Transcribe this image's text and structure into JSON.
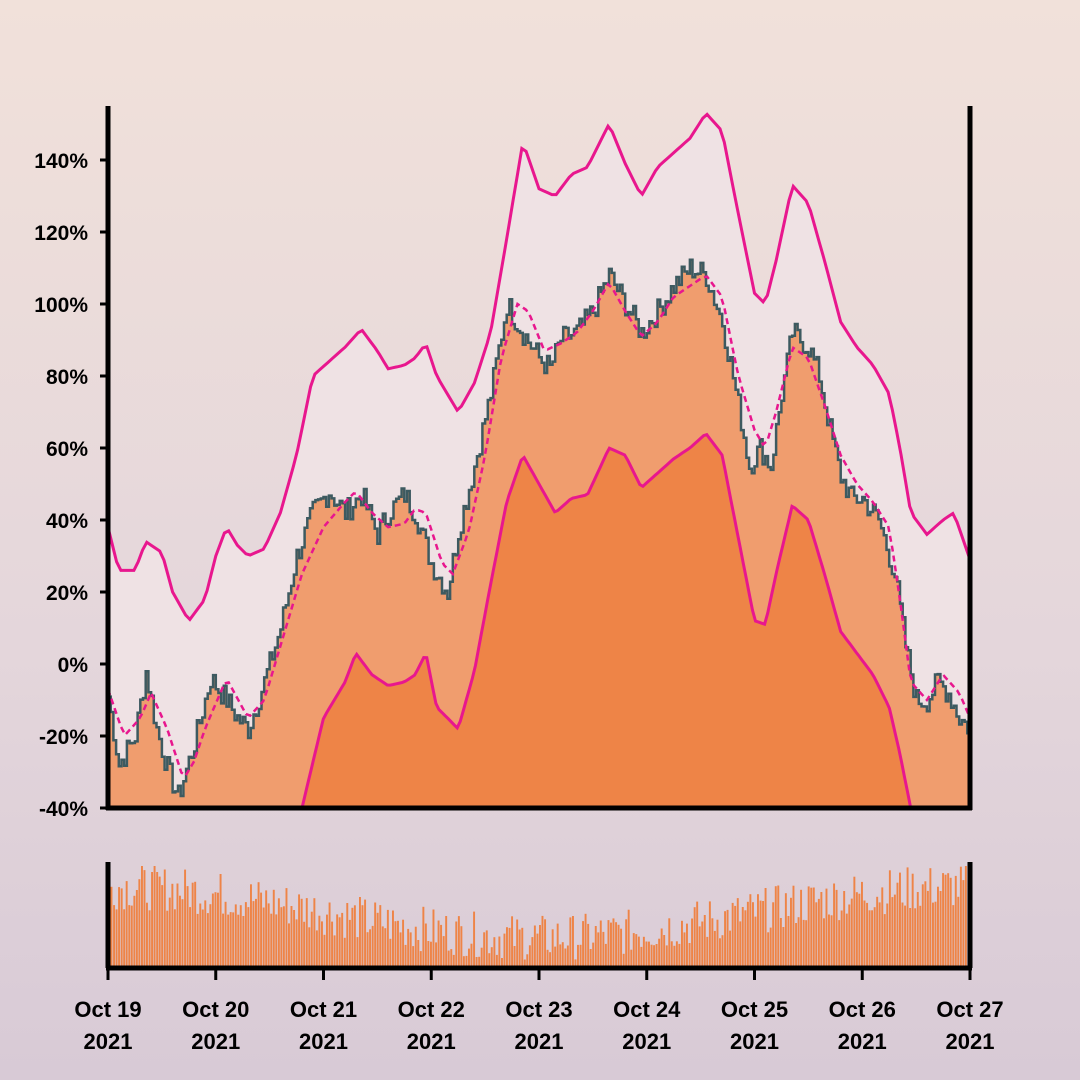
{
  "chart_data": {
    "type": "area",
    "description_visible": "Bollinger-style band chart with price area and volume bars",
    "y_axis": {
      "ylim": [
        -40,
        155
      ],
      "ticks": [
        -40,
        -20,
        0,
        20,
        40,
        60,
        80,
        100,
        120,
        140
      ],
      "tick_labels": [
        "-40%",
        "-20%",
        "0%",
        "20%",
        "40%",
        "60%",
        "80%",
        "100%",
        "120%",
        "140%"
      ]
    },
    "x_axis": {
      "range": [
        "2021-10-19",
        "2021-10-27"
      ],
      "ticks": [
        {
          "date": "2021-10-19",
          "line1": "Oct 19",
          "line2": "2021"
        },
        {
          "date": "2021-10-20",
          "line1": "Oct 20",
          "line2": "2021"
        },
        {
          "date": "2021-10-21",
          "line1": "Oct 21",
          "line2": "2021"
        },
        {
          "date": "2021-10-22",
          "line1": "Oct 22",
          "line2": "2021"
        },
        {
          "date": "2021-10-23",
          "line1": "Oct 23",
          "line2": "2021"
        },
        {
          "date": "2021-10-24",
          "line1": "Oct 24",
          "line2": "2021"
        },
        {
          "date": "2021-10-25",
          "line1": "Oct 25",
          "line2": "2021"
        },
        {
          "date": "2021-10-26",
          "line1": "Oct 26",
          "line2": "2021"
        },
        {
          "date": "2021-10-27",
          "line1": "Oct 27",
          "line2": "2021"
        }
      ]
    },
    "series": [
      {
        "role": "price",
        "points": [
          [
            0,
            -9
          ],
          [
            0.1,
            -28
          ],
          [
            0.25,
            -20
          ],
          [
            0.35,
            -2
          ],
          [
            0.45,
            -18
          ],
          [
            0.55,
            -29
          ],
          [
            0.65,
            -37
          ],
          [
            0.8,
            -22
          ],
          [
            0.95,
            -4
          ],
          [
            1.1,
            -10
          ],
          [
            1.2,
            -15
          ],
          [
            1.3,
            -18
          ],
          [
            1.45,
            -5
          ],
          [
            1.6,
            10
          ],
          [
            1.75,
            30
          ],
          [
            1.9,
            42
          ],
          [
            2.05,
            48
          ],
          [
            2.2,
            42
          ],
          [
            2.35,
            47
          ],
          [
            2.5,
            36
          ],
          [
            2.6,
            42
          ],
          [
            2.75,
            47
          ],
          [
            2.85,
            42
          ],
          [
            3.0,
            28
          ],
          [
            3.15,
            20
          ],
          [
            3.25,
            37
          ],
          [
            3.4,
            55
          ],
          [
            3.55,
            75
          ],
          [
            3.7,
            100
          ],
          [
            3.85,
            92
          ],
          [
            4.0,
            85
          ],
          [
            4.1,
            82
          ],
          [
            4.2,
            90
          ],
          [
            4.35,
            92
          ],
          [
            4.5,
            98
          ],
          [
            4.65,
            108
          ],
          [
            4.8,
            100
          ],
          [
            4.95,
            92
          ],
          [
            5.1,
            98
          ],
          [
            5.25,
            105
          ],
          [
            5.4,
            110
          ],
          [
            5.55,
            108
          ],
          [
            5.7,
            95
          ],
          [
            5.85,
            72
          ],
          [
            5.95,
            55
          ],
          [
            6.05,
            60
          ],
          [
            6.15,
            55
          ],
          [
            6.25,
            75
          ],
          [
            6.35,
            92
          ],
          [
            6.5,
            88
          ],
          [
            6.6,
            80
          ],
          [
            6.7,
            65
          ],
          [
            6.8,
            52
          ],
          [
            6.9,
            46
          ],
          [
            7.0,
            46
          ],
          [
            7.15,
            40
          ],
          [
            7.3,
            25
          ],
          [
            7.4,
            5
          ],
          [
            7.5,
            -10
          ],
          [
            7.6,
            -10
          ],
          [
            7.7,
            -5
          ],
          [
            7.8,
            -8
          ],
          [
            7.9,
            -15
          ],
          [
            8.0,
            -18
          ]
        ]
      },
      {
        "role": "moving_average",
        "points": [
          [
            0,
            -7
          ],
          [
            0.15,
            -20
          ],
          [
            0.3,
            -15
          ],
          [
            0.4,
            -8
          ],
          [
            0.55,
            -18
          ],
          [
            0.7,
            -32
          ],
          [
            0.8,
            -27
          ],
          [
            0.9,
            -18
          ],
          [
            1.1,
            -4
          ],
          [
            1.3,
            -15
          ],
          [
            1.45,
            -10
          ],
          [
            1.6,
            5
          ],
          [
            1.8,
            25
          ],
          [
            2.0,
            38
          ],
          [
            2.2,
            45
          ],
          [
            2.3,
            48
          ],
          [
            2.45,
            42
          ],
          [
            2.6,
            38
          ],
          [
            2.75,
            39
          ],
          [
            2.85,
            43
          ],
          [
            2.95,
            42
          ],
          [
            3.1,
            28
          ],
          [
            3.2,
            25
          ],
          [
            3.35,
            37
          ],
          [
            3.5,
            58
          ],
          [
            3.65,
            85
          ],
          [
            3.8,
            100
          ],
          [
            3.9,
            98
          ],
          [
            4.05,
            87
          ],
          [
            4.2,
            89
          ],
          [
            4.35,
            92
          ],
          [
            4.5,
            98
          ],
          [
            4.65,
            106
          ],
          [
            4.8,
            98
          ],
          [
            4.95,
            91
          ],
          [
            5.1,
            95
          ],
          [
            5.25,
            102
          ],
          [
            5.4,
            105
          ],
          [
            5.55,
            108
          ],
          [
            5.7,
            102
          ],
          [
            5.85,
            80
          ],
          [
            6.0,
            65
          ],
          [
            6.1,
            60
          ],
          [
            6.2,
            70
          ],
          [
            6.35,
            88
          ],
          [
            6.5,
            85
          ],
          [
            6.65,
            72
          ],
          [
            6.8,
            58
          ],
          [
            6.95,
            50
          ],
          [
            7.1,
            45
          ],
          [
            7.25,
            38
          ],
          [
            7.35,
            18
          ],
          [
            7.45,
            -5
          ],
          [
            7.6,
            -10
          ],
          [
            7.75,
            -3
          ],
          [
            7.9,
            -8
          ],
          [
            8.0,
            -15
          ]
        ]
      },
      {
        "role": "upper_band",
        "points": [
          [
            0,
            38
          ],
          [
            0.1,
            26
          ],
          [
            0.25,
            26
          ],
          [
            0.35,
            34
          ],
          [
            0.5,
            31
          ],
          [
            0.6,
            20
          ],
          [
            0.75,
            12
          ],
          [
            0.9,
            18
          ],
          [
            1.0,
            30
          ],
          [
            1.1,
            38
          ],
          [
            1.2,
            33
          ],
          [
            1.3,
            30
          ],
          [
            1.45,
            32
          ],
          [
            1.6,
            42
          ],
          [
            1.75,
            58
          ],
          [
            1.9,
            80
          ],
          [
            2.05,
            84
          ],
          [
            2.2,
            88
          ],
          [
            2.35,
            93
          ],
          [
            2.5,
            87
          ],
          [
            2.6,
            82
          ],
          [
            2.75,
            83
          ],
          [
            2.85,
            85
          ],
          [
            2.95,
            89
          ],
          [
            3.05,
            80
          ],
          [
            3.25,
            70
          ],
          [
            3.4,
            78
          ],
          [
            3.55,
            92
          ],
          [
            3.7,
            118
          ],
          [
            3.85,
            145
          ],
          [
            4.0,
            132
          ],
          [
            4.15,
            130
          ],
          [
            4.3,
            136
          ],
          [
            4.45,
            138
          ],
          [
            4.65,
            150
          ],
          [
            4.8,
            139
          ],
          [
            4.95,
            130
          ],
          [
            5.1,
            138
          ],
          [
            5.25,
            142
          ],
          [
            5.4,
            146
          ],
          [
            5.55,
            153
          ],
          [
            5.7,
            148
          ],
          [
            5.85,
            125
          ],
          [
            6.0,
            103
          ],
          [
            6.1,
            100
          ],
          [
            6.2,
            112
          ],
          [
            6.35,
            133
          ],
          [
            6.5,
            128
          ],
          [
            6.65,
            112
          ],
          [
            6.8,
            95
          ],
          [
            6.95,
            88
          ],
          [
            7.1,
            83
          ],
          [
            7.25,
            75
          ],
          [
            7.35,
            60
          ],
          [
            7.45,
            42
          ],
          [
            7.6,
            36
          ],
          [
            7.75,
            40
          ],
          [
            7.85,
            42
          ],
          [
            8.0,
            29
          ]
        ]
      },
      {
        "role": "lower_band",
        "points": [
          [
            1.8,
            -40
          ],
          [
            2.0,
            -15
          ],
          [
            2.2,
            -5
          ],
          [
            2.3,
            3
          ],
          [
            2.45,
            -3
          ],
          [
            2.6,
            -6
          ],
          [
            2.75,
            -5
          ],
          [
            2.85,
            -3
          ],
          [
            2.95,
            3
          ],
          [
            3.05,
            -12
          ],
          [
            3.25,
            -18
          ],
          [
            3.4,
            -2
          ],
          [
            3.55,
            22
          ],
          [
            3.7,
            45
          ],
          [
            3.85,
            58
          ],
          [
            4.0,
            50
          ],
          [
            4.15,
            42
          ],
          [
            4.3,
            46
          ],
          [
            4.45,
            47
          ],
          [
            4.65,
            60
          ],
          [
            4.8,
            58
          ],
          [
            4.95,
            49
          ],
          [
            5.1,
            53
          ],
          [
            5.25,
            57
          ],
          [
            5.4,
            60
          ],
          [
            5.55,
            64
          ],
          [
            5.7,
            58
          ],
          [
            5.85,
            35
          ],
          [
            6.0,
            12
          ],
          [
            6.1,
            11
          ],
          [
            6.2,
            25
          ],
          [
            6.35,
            44
          ],
          [
            6.5,
            40
          ],
          [
            6.65,
            25
          ],
          [
            6.8,
            9
          ],
          [
            6.95,
            3
          ],
          [
            7.1,
            -3
          ],
          [
            7.25,
            -12
          ],
          [
            7.35,
            -25
          ],
          [
            7.45,
            -40
          ]
        ]
      }
    ],
    "volume": {
      "visible": true,
      "note": "unlabeled volume bars"
    },
    "colors": {
      "upper_band": "#e8178e",
      "lower_band": "#e8178e",
      "moving_average": "#e8178e",
      "price_line": "#3d5a60",
      "price_fill": "#f09d6e",
      "band_fill_inner": "#ee8447",
      "band_fill_outer": "#efe2e4",
      "volume": "#ee8447",
      "axis": "#000000"
    }
  }
}
